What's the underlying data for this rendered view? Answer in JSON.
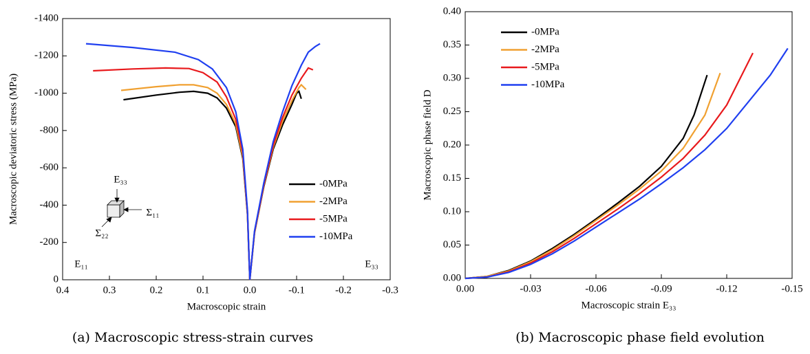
{
  "chart_data": [
    {
      "type": "line",
      "caption": "(a) Macroscopic stress-strain curves",
      "x_label": "Macroscopic strain",
      "y_label": "Macroscopic deviatoric stress (MPa)",
      "xlim": [
        0.4,
        -0.3
      ],
      "xticks": [
        0.4,
        0.3,
        0.2,
        0.1,
        {
          "value": 0,
          "label": "0.0"
        },
        -0.1,
        -0.2,
        -0.3
      ],
      "ylim": [
        0,
        -1400
      ],
      "yticks": [
        0,
        -200,
        -400,
        -600,
        -800,
        -1000,
        -1200,
        -1400
      ],
      "legend": "lower right",
      "annotations": [
        "E₁₁",
        "E₃₃",
        "E₃₃",
        "Σ₁₁",
        "Σ₂₂"
      ],
      "series": [
        {
          "name": "-0MPa",
          "color": "#000000",
          "x": [
            0.27,
            0.2,
            0.15,
            0.12,
            0.09,
            0.07,
            0.05,
            0.03,
            0.015,
            0.005,
            0,
            -0.01,
            -0.03,
            -0.05,
            -0.07,
            -0.09,
            -0.1,
            -0.105,
            -0.11
          ],
          "values": [
            -965,
            -990,
            -1005,
            -1010,
            -1000,
            -975,
            -920,
            -820,
            -650,
            -350,
            0,
            -250,
            -500,
            -700,
            -830,
            -940,
            -1000,
            -1010,
            -970
          ]
        },
        {
          "name": "-2MPa",
          "color": "#f0a030",
          "x": [
            0.275,
            0.2,
            0.15,
            0.12,
            0.09,
            0.07,
            0.05,
            0.03,
            0.015,
            0.005,
            0,
            -0.01,
            -0.03,
            -0.05,
            -0.07,
            -0.09,
            -0.105,
            -0.11,
            -0.12
          ],
          "values": [
            -1015,
            -1035,
            -1045,
            -1045,
            -1030,
            -1000,
            -940,
            -835,
            -660,
            -355,
            0,
            -250,
            -505,
            -710,
            -850,
            -960,
            -1030,
            -1045,
            -1020
          ]
        },
        {
          "name": "-5MPa",
          "color": "#e8191c",
          "x": [
            0.335,
            0.25,
            0.18,
            0.13,
            0.1,
            0.07,
            0.05,
            0.03,
            0.015,
            0.005,
            0,
            -0.01,
            -0.03,
            -0.05,
            -0.07,
            -0.09,
            -0.11,
            -0.125,
            -0.135
          ],
          "values": [
            -1120,
            -1130,
            -1135,
            -1132,
            -1110,
            -1060,
            -980,
            -860,
            -680,
            -360,
            0,
            -255,
            -510,
            -720,
            -870,
            -990,
            -1080,
            -1135,
            -1125
          ]
        },
        {
          "name": "-10MPa",
          "color": "#1f3ff0",
          "x": [
            0.35,
            0.25,
            0.16,
            0.11,
            0.08,
            0.05,
            0.03,
            0.015,
            0.005,
            0,
            -0.01,
            -0.03,
            -0.05,
            -0.07,
            -0.09,
            -0.11,
            -0.125,
            -0.14,
            -0.15
          ],
          "values": [
            -1265,
            -1245,
            -1220,
            -1180,
            -1130,
            -1030,
            -900,
            -700,
            -370,
            0,
            -260,
            -520,
            -740,
            -900,
            -1040,
            -1150,
            -1220,
            -1250,
            -1265
          ]
        }
      ]
    },
    {
      "type": "line",
      "caption": "(b) Macroscopic phase field evolution",
      "x_label": "Macroscopic strain E₃₃",
      "y_label": "Macroscopic phase field D",
      "xlim": [
        0,
        -0.15
      ],
      "xticks": [
        {
          "value": 0,
          "label": "0.00"
        },
        -0.03,
        {
          "value": -0.06,
          "label": "-0.06"
        },
        -0.09,
        {
          "value": -0.12,
          "label": "-0.12"
        },
        -0.15
      ],
      "ylim": [
        0,
        0.4
      ],
      "yticks": [
        {
          "value": 0,
          "label": "0.00"
        },
        0.05,
        {
          "value": 0.1,
          "label": "0.10"
        },
        0.15,
        {
          "value": 0.2,
          "label": "0.20"
        },
        0.25,
        {
          "value": 0.3,
          "label": "0.30"
        },
        0.35,
        {
          "value": 0.4,
          "label": "0.40"
        }
      ],
      "legend": "upper left",
      "series": [
        {
          "name": "-0MPa",
          "color": "#000000",
          "x": [
            0,
            -0.01,
            -0.02,
            -0.03,
            -0.04,
            -0.05,
            -0.06,
            -0.07,
            -0.08,
            -0.09,
            -0.1,
            -0.105,
            -0.111
          ],
          "values": [
            0,
            0.003,
            0.012,
            0.026,
            0.045,
            0.066,
            0.089,
            0.113,
            0.138,
            0.168,
            0.21,
            0.245,
            0.305
          ]
        },
        {
          "name": "-2MPa",
          "color": "#f0a030",
          "x": [
            0,
            -0.01,
            -0.02,
            -0.03,
            -0.04,
            -0.05,
            -0.06,
            -0.07,
            -0.08,
            -0.09,
            -0.1,
            -0.11,
            -0.117
          ],
          "values": [
            0,
            0.003,
            0.011,
            0.025,
            0.043,
            0.064,
            0.087,
            0.11,
            0.134,
            0.161,
            0.195,
            0.245,
            0.308
          ]
        },
        {
          "name": "-5MPa",
          "color": "#e8191c",
          "x": [
            0,
            -0.01,
            -0.02,
            -0.03,
            -0.04,
            -0.05,
            -0.06,
            -0.07,
            -0.08,
            -0.09,
            -0.1,
            -0.11,
            -0.12,
            -0.132
          ],
          "values": [
            0,
            0.002,
            0.01,
            0.023,
            0.04,
            0.06,
            0.082,
            0.104,
            0.127,
            0.152,
            0.18,
            0.215,
            0.26,
            0.338
          ]
        },
        {
          "name": "-10MPa",
          "color": "#1f3ff0",
          "x": [
            0,
            -0.01,
            -0.02,
            -0.03,
            -0.04,
            -0.05,
            -0.06,
            -0.07,
            -0.08,
            -0.09,
            -0.1,
            -0.11,
            -0.12,
            -0.13,
            -0.14,
            -0.148
          ],
          "values": [
            0,
            0.002,
            0.009,
            0.021,
            0.037,
            0.056,
            0.077,
            0.098,
            0.119,
            0.142,
            0.166,
            0.193,
            0.225,
            0.265,
            0.305,
            0.345
          ]
        }
      ]
    }
  ]
}
